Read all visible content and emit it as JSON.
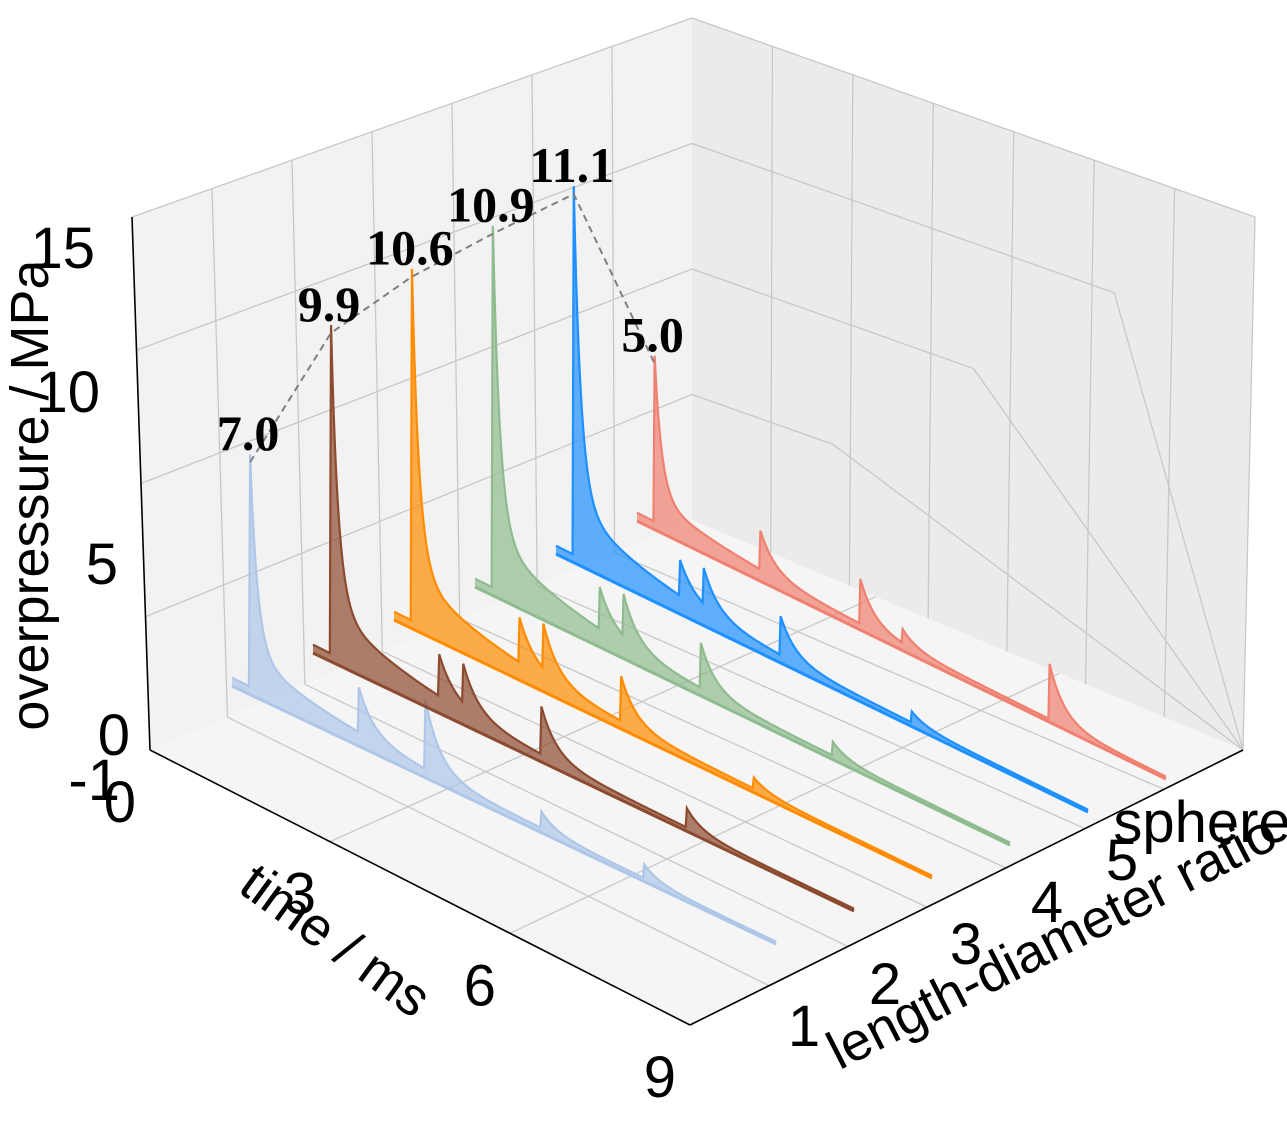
{
  "chart_data": {
    "type": "3d-waterfall",
    "title": "",
    "xlabel": "time / ms",
    "ylabel": "length-diameter ratio",
    "zlabel": "overpressure / MPa",
    "x_ticks": [
      "0",
      "3",
      "6",
      "9"
    ],
    "y_ticks": [
      "1",
      "2",
      "3",
      "4",
      "5",
      "sphere"
    ],
    "z_ticks": [
      "-1",
      "0",
      "5",
      "10",
      "15"
    ],
    "xlim": [
      0,
      9
    ],
    "zlim": [
      -1,
      15
    ],
    "peak_trend": "dashed line connecting peak values",
    "series": [
      {
        "name": "1",
        "color": "#aec7e8",
        "peak": 7.0,
        "peak_label": "7.0",
        "events": [
          [
            0.3,
            7.0
          ],
          [
            2.1,
            1.5
          ],
          [
            3.2,
            2.3
          ],
          [
            5.1,
            0.6
          ],
          [
            6.8,
            0.5
          ]
        ]
      },
      {
        "name": "2",
        "color": "#8c4a2f",
        "peak": 9.9,
        "peak_label": "9.9",
        "events": [
          [
            0.3,
            9.9
          ],
          [
            2.1,
            1.4
          ],
          [
            2.5,
            1.3
          ],
          [
            3.8,
            1.6
          ],
          [
            6.2,
            0.7
          ]
        ]
      },
      {
        "name": "3",
        "color": "#ff8c00",
        "peak": 10.6,
        "peak_label": "10.6",
        "events": [
          [
            0.3,
            10.6
          ],
          [
            2.1,
            1.5
          ],
          [
            2.5,
            1.5
          ],
          [
            3.8,
            1.5
          ],
          [
            6.0,
            0.4
          ]
        ]
      },
      {
        "name": "4",
        "color": "#8fbc8f",
        "peak": 10.9,
        "peak_label": "10.9",
        "events": [
          [
            0.3,
            10.9
          ],
          [
            2.1,
            1.4
          ],
          [
            2.5,
            1.4
          ],
          [
            3.8,
            1.5
          ],
          [
            6.0,
            0.5
          ]
        ]
      },
      {
        "name": "5",
        "color": "#1e90ff",
        "peak": 11.1,
        "peak_label": "11.1",
        "events": [
          [
            0.3,
            11.1
          ],
          [
            2.1,
            1.2
          ],
          [
            2.5,
            1.2
          ],
          [
            3.8,
            1.3
          ],
          [
            6.0,
            0.4
          ]
        ]
      },
      {
        "name": "sphere",
        "color": "#f08070",
        "peak": 5.0,
        "peak_label": "5.0",
        "events": [
          [
            0.3,
            5.0
          ],
          [
            2.1,
            1.3
          ],
          [
            3.8,
            1.5
          ],
          [
            4.5,
            0.5
          ],
          [
            7.0,
            2.0
          ]
        ]
      }
    ]
  }
}
